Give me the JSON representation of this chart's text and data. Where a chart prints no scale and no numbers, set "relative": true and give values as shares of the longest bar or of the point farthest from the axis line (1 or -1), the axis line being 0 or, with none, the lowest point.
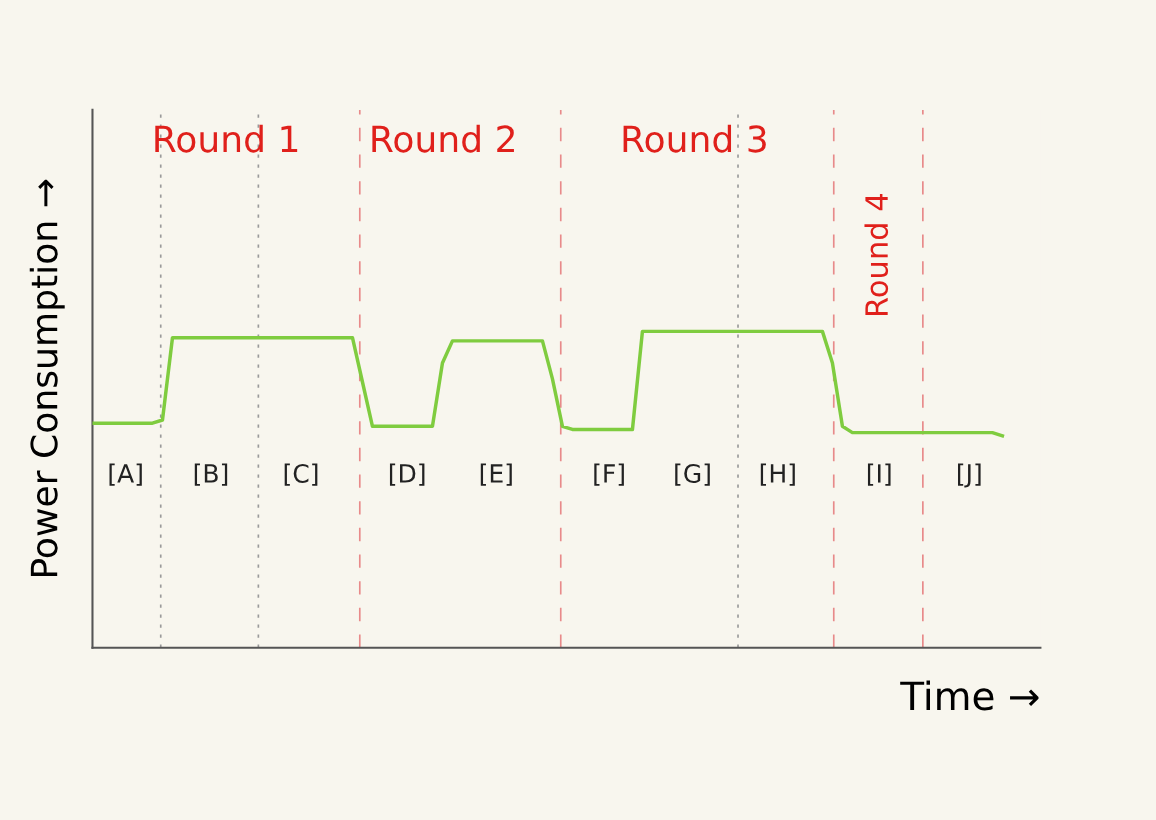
{
  "chart_data": {
    "type": "line",
    "relative": true,
    "xlabel": "Time →",
    "ylabel": "Power Consumption →",
    "categories": [
      null,
      null,
      null,
      null,
      null,
      null,
      null,
      null,
      null,
      null,
      null,
      null,
      null,
      null,
      null,
      null,
      null,
      null,
      null,
      null,
      null,
      null,
      null,
      null,
      null,
      null,
      null,
      null,
      null,
      null,
      null,
      null,
      null,
      null,
      null,
      null,
      null,
      null,
      null,
      null,
      null,
      null,
      null,
      null,
      null,
      null,
      null,
      null,
      null,
      null,
      null,
      null,
      null,
      null,
      null,
      null,
      null,
      null,
      null,
      null,
      null,
      null,
      null,
      null,
      null,
      null,
      null,
      null,
      null,
      null,
      null,
      null,
      null,
      null,
      null,
      null,
      null,
      null,
      null,
      null,
      null,
      null,
      null,
      null,
      null,
      null,
      null,
      null,
      null,
      null,
      null,
      null
    ],
    "series": [
      {
        "color": "#7fcc3f",
        "values": [
          0.71,
          0.71,
          0.71,
          0.71,
          0.71,
          0.71,
          0.71,
          0.72,
          0.98,
          0.98,
          0.98,
          0.98,
          0.98,
          0.98,
          0.98,
          0.98,
          0.98,
          0.98,
          0.98,
          0.98,
          0.98,
          0.98,
          0.98,
          0.98,
          0.98,
          0.98,
          0.98,
          0.84,
          0.7,
          0.7,
          0.7,
          0.7,
          0.7,
          0.7,
          0.7,
          0.9,
          0.97,
          0.97,
          0.97,
          0.97,
          0.97,
          0.97,
          0.97,
          0.97,
          0.97,
          0.97,
          0.85,
          0.7,
          0.69,
          0.69,
          0.69,
          0.69,
          0.69,
          0.69,
          0.69,
          1,
          1,
          1,
          1,
          1,
          1,
          1,
          1,
          1,
          1,
          1,
          1,
          1,
          1,
          1,
          1,
          1,
          1,
          1,
          0.9,
          0.7,
          0.68,
          0.68,
          0.68,
          0.68,
          0.68,
          0.68,
          0.68,
          0.68,
          0.68,
          0.68,
          0.68,
          0.68,
          0.68,
          0.68,
          0.68,
          0.67
        ]
      }
    ],
    "annotations": [
      "Round 1",
      "Round 2",
      "Round 3",
      "Round 4",
      "[A]",
      "[B]",
      "[C]",
      "[D]",
      "[E]",
      "[F]",
      "[G]",
      "[H]",
      "[I]",
      "[J]"
    ]
  }
}
